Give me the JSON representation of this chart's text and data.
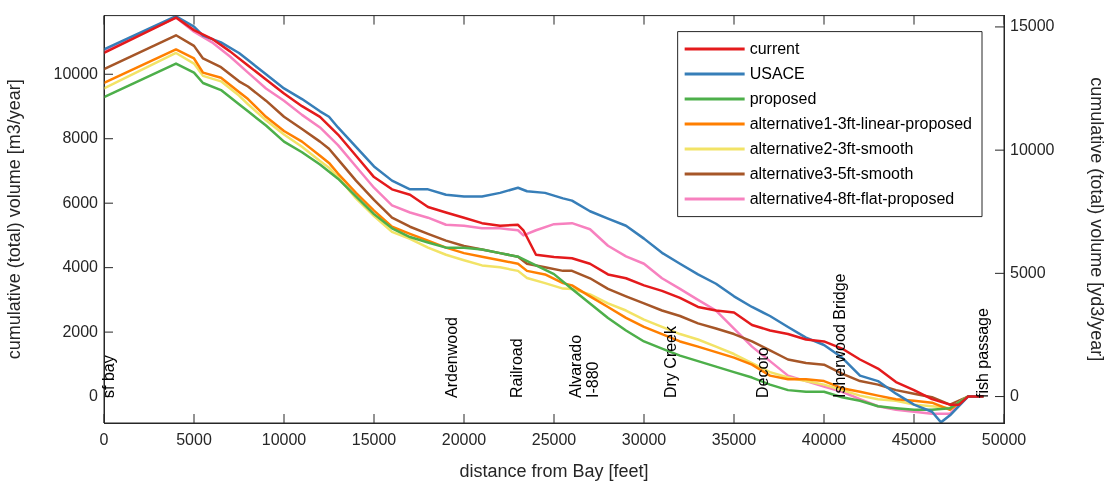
{
  "chart_data": {
    "type": "line",
    "xlabel": "distance from Bay [feet]",
    "ylabel": "cumulative (total) volume [m3/year]",
    "y2label": "cumulative (total) volume [yd3/year]",
    "xlim": [
      0,
      50000
    ],
    "xticks": [
      0,
      5000,
      10000,
      15000,
      20000,
      25000,
      30000,
      35000,
      40000,
      45000,
      50000
    ],
    "ylim": [
      -820,
      11820
    ],
    "yticks": [
      0,
      2000,
      4000,
      6000,
      8000,
      10000
    ],
    "y2lim": [
      -1073,
      15460
    ],
    "y2ticks": [
      0,
      5000,
      10000,
      15000
    ],
    "legend": "top right",
    "marker": "none",
    "line_style": "solid",
    "series": [
      {
        "name": "current",
        "color": "#e41a1c",
        "x": [
          0,
          4000,
          5000,
          6000,
          7000,
          8000,
          9000,
          10000,
          11000,
          12000,
          13000,
          14000,
          15000,
          16000,
          17000,
          18000,
          19000,
          20000,
          21000,
          22000,
          23000,
          23300,
          24000,
          25000,
          26000,
          27000,
          28000,
          29000,
          30000,
          31000,
          32000,
          33000,
          34000,
          35000,
          36000,
          37000,
          38000,
          39000,
          40000,
          41000,
          42000,
          43000,
          44000,
          45000,
          46000,
          47000,
          47500,
          48000,
          48800
        ],
        "values": [
          10660,
          11760,
          11370,
          11100,
          10710,
          10270,
          9840,
          9400,
          9010,
          8680,
          8130,
          7470,
          6810,
          6430,
          6260,
          5880,
          5710,
          5550,
          5380,
          5300,
          5330,
          5160,
          4400,
          4330,
          4290,
          4120,
          3790,
          3670,
          3450,
          3280,
          3060,
          2780,
          2670,
          2610,
          2220,
          2050,
          1940,
          1770,
          1710,
          1490,
          1150,
          870,
          450,
          200,
          -80,
          -250,
          -250,
          0,
          0
        ]
      },
      {
        "name": "USACE",
        "color": "#377eb8",
        "x": [
          0,
          4000,
          5000,
          5500,
          6500,
          7500,
          8000,
          9000,
          10000,
          11000,
          12000,
          12500,
          13000,
          14000,
          15000,
          16000,
          17000,
          18000,
          19000,
          20000,
          21000,
          22000,
          23000,
          23500,
          24500,
          25500,
          26000,
          27000,
          28000,
          29000,
          30000,
          31000,
          32000,
          33000,
          34000,
          35000,
          36000,
          37000,
          38000,
          39000,
          40000,
          41000,
          42000,
          43000,
          44000,
          45000,
          46000,
          46500,
          47000,
          48000,
          48800
        ],
        "values": [
          10770,
          11800,
          11480,
          11200,
          10990,
          10660,
          10440,
          10000,
          9560,
          9230,
          8850,
          8680,
          8350,
          7750,
          7140,
          6700,
          6430,
          6430,
          6260,
          6210,
          6210,
          6320,
          6480,
          6370,
          6320,
          6150,
          6080,
          5750,
          5520,
          5300,
          4900,
          4460,
          4120,
          3790,
          3500,
          3110,
          2780,
          2500,
          2160,
          1830,
          1600,
          1210,
          650,
          480,
          90,
          -250,
          -470,
          -800,
          -580,
          0,
          0
        ]
      },
      {
        "name": "proposed",
        "color": "#4daf4a",
        "x": [
          0,
          4000,
          5000,
          5500,
          6500,
          7500,
          8000,
          9000,
          10000,
          11000,
          12000,
          13000,
          14000,
          15000,
          16000,
          17000,
          18000,
          19000,
          20000,
          21000,
          22000,
          23000,
          24000,
          25000,
          26000,
          27000,
          28000,
          29000,
          30000,
          31000,
          32000,
          33000,
          34000,
          35000,
          36000,
          37000,
          38000,
          39000,
          40000,
          41000,
          42000,
          43000,
          44000,
          45000,
          46000,
          47000,
          48000,
          48800
        ],
        "values": [
          9290,
          10330,
          10050,
          9730,
          9510,
          9070,
          8850,
          8410,
          7910,
          7580,
          7200,
          6760,
          6210,
          5660,
          5220,
          4950,
          4780,
          4620,
          4620,
          4560,
          4450,
          4340,
          4070,
          3800,
          3340,
          2890,
          2440,
          2050,
          1710,
          1490,
          1270,
          1100,
          930,
          760,
          590,
          370,
          200,
          150,
          150,
          -20,
          -130,
          -300,
          -360,
          -410,
          -410,
          -360,
          0,
          0
        ]
      },
      {
        "name": "alternative1-3ft-linear-proposed",
        "color": "#ff7f00",
        "x": [
          0,
          4000,
          5000,
          5500,
          6500,
          7500,
          8000,
          9000,
          10000,
          11000,
          12000,
          12500,
          13000,
          14000,
          15000,
          16000,
          17000,
          18000,
          19000,
          20000,
          21000,
          22000,
          23000,
          23500,
          24500,
          25500,
          26000,
          27000,
          28000,
          29000,
          30000,
          31000,
          32000,
          33000,
          34000,
          35000,
          36000,
          37000,
          38000,
          39000,
          40000,
          41000,
          42000,
          43000,
          44000,
          45000,
          46000,
          47000,
          48000,
          48800
        ],
        "values": [
          9730,
          10770,
          10490,
          10050,
          9890,
          9450,
          9230,
          8680,
          8240,
          7910,
          7470,
          7250,
          6920,
          6320,
          5770,
          5270,
          5050,
          4840,
          4620,
          4450,
          4340,
          4230,
          4120,
          3900,
          3790,
          3520,
          3450,
          3110,
          2780,
          2440,
          2160,
          1940,
          1710,
          1550,
          1380,
          1210,
          990,
          650,
          540,
          540,
          480,
          260,
          150,
          30,
          -80,
          -130,
          -190,
          -410,
          0,
          0
        ]
      },
      {
        "name": "alternative2-3ft-smooth",
        "color": "#f2e366",
        "x": [
          0,
          4000,
          5000,
          5500,
          6500,
          7500,
          8000,
          9000,
          10000,
          11000,
          12000,
          12500,
          13000,
          14000,
          15000,
          16000,
          17000,
          18000,
          19000,
          20000,
          21000,
          22000,
          23000,
          23500,
          24500,
          25500,
          26000,
          27000,
          28000,
          29000,
          30000,
          31000,
          32000,
          33000,
          34000,
          35000,
          36000,
          37000,
          38000,
          39000,
          40000,
          41000,
          42000,
          43000,
          44000,
          45000,
          46000,
          47000,
          48000,
          48800
        ],
        "values": [
          9560,
          10660,
          10330,
          9950,
          9780,
          9340,
          9070,
          8570,
          8130,
          7750,
          7310,
          7100,
          6810,
          6150,
          5600,
          5110,
          4890,
          4620,
          4400,
          4230,
          4070,
          4010,
          3900,
          3680,
          3520,
          3350,
          3340,
          3170,
          2890,
          2670,
          2390,
          2160,
          1940,
          1770,
          1550,
          1320,
          1040,
          760,
          590,
          480,
          370,
          200,
          30,
          -80,
          -130,
          -250,
          -300,
          -360,
          0,
          0
        ]
      },
      {
        "name": "alternative3-5ft-smooth",
        "color": "#a65628",
        "x": [
          0,
          4000,
          5000,
          5500,
          6500,
          7500,
          8000,
          9000,
          10000,
          11000,
          12000,
          12500,
          13000,
          14000,
          15000,
          16000,
          17000,
          18000,
          19000,
          20000,
          21000,
          22000,
          23000,
          23500,
          24500,
          25500,
          26000,
          27000,
          28000,
          29000,
          30000,
          31000,
          32000,
          33000,
          34000,
          35000,
          36000,
          37000,
          38000,
          39000,
          40000,
          41000,
          42000,
          43000,
          44000,
          45000,
          46000,
          47000,
          48000,
          48800
        ],
        "values": [
          10160,
          11210,
          10880,
          10490,
          10220,
          9780,
          9620,
          9180,
          8680,
          8300,
          7910,
          7690,
          7360,
          6700,
          6100,
          5550,
          5270,
          5050,
          4840,
          4670,
          4560,
          4450,
          4340,
          4120,
          4010,
          3900,
          3900,
          3670,
          3340,
          3110,
          2890,
          2670,
          2500,
          2270,
          2110,
          1940,
          1710,
          1430,
          1150,
          1040,
          990,
          710,
          480,
          370,
          200,
          90,
          -20,
          -250,
          0,
          0
        ]
      },
      {
        "name": "alternative4-8ft-flat-proposed",
        "color": "#f781bf",
        "x": [
          0,
          4000,
          5000,
          6000,
          7000,
          8000,
          9000,
          10000,
          11000,
          12000,
          13000,
          14000,
          15000,
          16000,
          17000,
          18000,
          19000,
          20000,
          21000,
          22000,
          23000,
          23300,
          24000,
          25000,
          26000,
          27000,
          28000,
          29000,
          30000,
          31000,
          32000,
          33000,
          34000,
          35000,
          36000,
          37000,
          38000,
          39000,
          40000,
          41000,
          42000,
          43000,
          44000,
          45000,
          46000,
          47000,
          48000,
          48800
        ],
        "values": [
          10720,
          11760,
          11320,
          10990,
          10550,
          10050,
          9560,
          9180,
          8740,
          8350,
          7800,
          7140,
          6480,
          5930,
          5710,
          5550,
          5330,
          5300,
          5220,
          5220,
          5160,
          5000,
          5160,
          5350,
          5380,
          5190,
          4680,
          4350,
          4120,
          3670,
          3340,
          3000,
          2670,
          2110,
          1550,
          1100,
          650,
          480,
          310,
          150,
          -80,
          -300,
          -410,
          -470,
          -530,
          -530,
          0,
          0
        ]
      }
    ],
    "annotations": [
      "sf bay",
      "Ardenwood",
      "Railroad",
      "Alvarado\nI-880",
      "Dry Creek",
      "Decoto",
      "Isherwood Bridge",
      "fish passage"
    ]
  }
}
